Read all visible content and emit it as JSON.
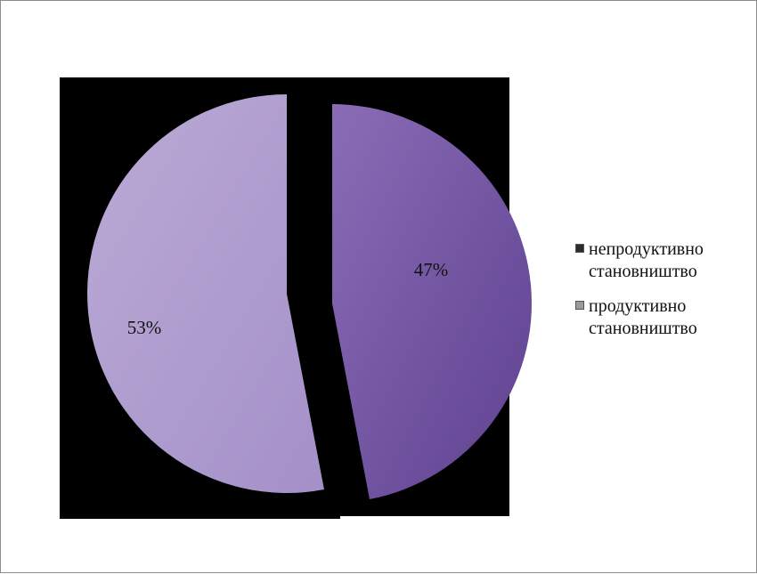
{
  "chart_data": {
    "type": "pie",
    "title": "",
    "series": [
      {
        "values": [
          47,
          53
        ],
        "categories": [
          "непродуктивно становништво",
          "продуктивно становништво"
        ]
      }
    ],
    "data_labels": [
      "47%",
      "53%"
    ],
    "legend": {
      "placement": "right",
      "entries": [
        "непродуктивно становништво",
        "продуктивно становништво"
      ]
    },
    "colors": [
      "#7a5aa6",
      "#b09fce"
    ],
    "background": "#000000"
  }
}
